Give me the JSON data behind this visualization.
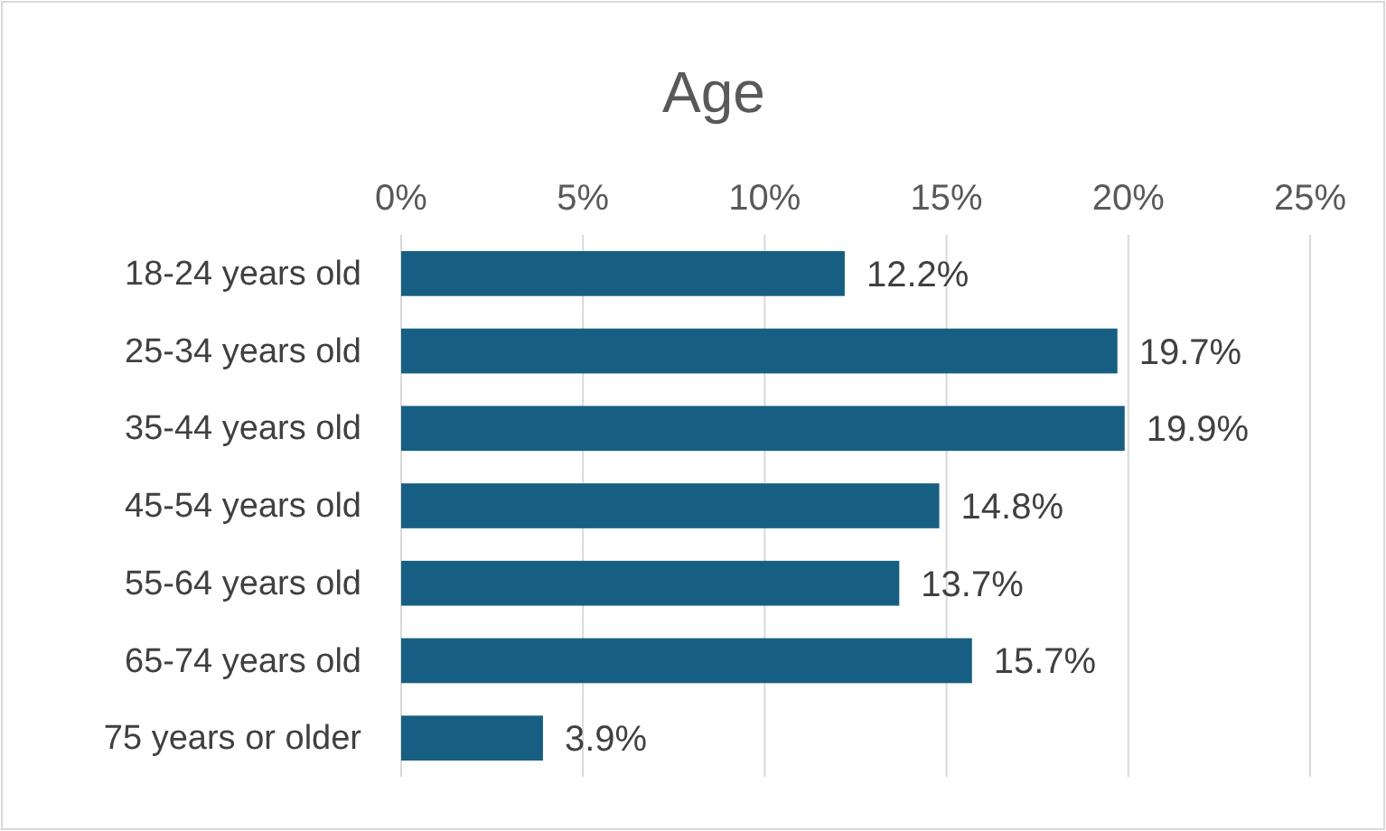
{
  "chart_data": {
    "type": "bar",
    "orientation": "horizontal",
    "title": "Age",
    "categories": [
      "18-24 years old",
      "25-34 years old",
      "35-44 years old",
      "45-54 years old",
      "55-64 years old",
      "65-74 years old",
      "75 years or older"
    ],
    "values": [
      12.2,
      19.7,
      19.9,
      14.8,
      13.7,
      15.7,
      3.9
    ],
    "value_labels": [
      "12.2%",
      "19.7%",
      "19.9%",
      "14.8%",
      "13.7%",
      "15.7%",
      "3.9%"
    ],
    "color": "#175f82",
    "xlim": [
      0,
      25
    ],
    "xticks": [
      {
        "value": 0,
        "label": "0%"
      },
      {
        "value": 5,
        "label": "5%"
      },
      {
        "value": 10,
        "label": "10%"
      },
      {
        "value": 15,
        "label": "15%"
      },
      {
        "value": 20,
        "label": "20%"
      },
      {
        "value": 25,
        "label": "25%"
      }
    ],
    "grid": "x"
  }
}
